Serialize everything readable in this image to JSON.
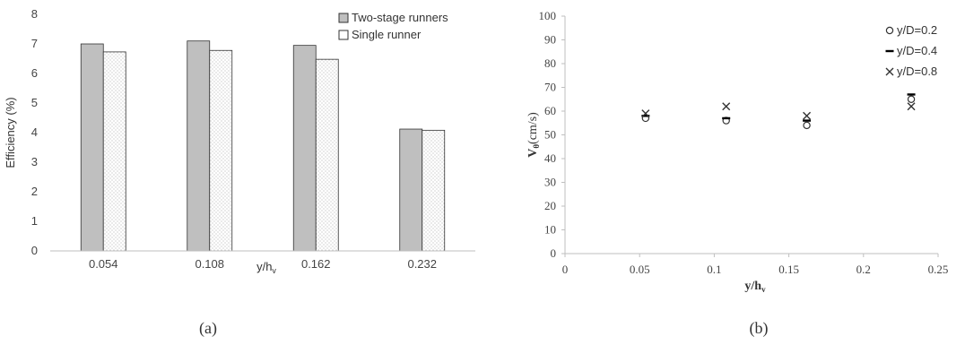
{
  "chart_data": [
    {
      "id": "a",
      "type": "bar",
      "caption": "(a)",
      "xlabel": "y/h",
      "xlabel_sub": "v",
      "ylabel": "Efficiency (%)",
      "ylim": [
        0,
        8
      ],
      "yticks": [
        "0",
        "1",
        "2",
        "3",
        "4",
        "5",
        "6",
        "7",
        "8"
      ],
      "categories": [
        "0.054",
        "0.108",
        "0.162",
        "0.232"
      ],
      "series": [
        {
          "name": "Two-stage runners",
          "values": [
            7.0,
            7.1,
            6.95,
            4.12
          ],
          "color": "#bfbfbf",
          "pattern": "solid"
        },
        {
          "name": "Single runner",
          "values": [
            6.73,
            6.78,
            6.48,
            4.08
          ],
          "color": "#ffffff",
          "pattern": "dots"
        }
      ],
      "legend_position": "top-right",
      "grid": false
    },
    {
      "id": "b",
      "type": "scatter",
      "caption": "(b)",
      "xlabel": "y/h",
      "xlabel_sub": "v",
      "ylabel": "V",
      "ylabel_sub": "θ",
      "ylabel_suffix": "(cm/s)",
      "xlim": [
        0,
        0.25
      ],
      "ylim": [
        0,
        100
      ],
      "xticks": [
        "0",
        "0.05",
        "0.1",
        "0.15",
        "0.2",
        "0.25"
      ],
      "yticks": [
        "0",
        "10",
        "20",
        "30",
        "40",
        "50",
        "60",
        "70",
        "80",
        "90",
        "100"
      ],
      "series": [
        {
          "name": "y/D=0.2",
          "marker": "circle",
          "x": [
            0.054,
            0.108,
            0.162,
            0.232
          ],
          "y": [
            57,
            56,
            54,
            65
          ]
        },
        {
          "name": "y/D=0.4",
          "marker": "dash",
          "x": [
            0.054,
            0.108,
            0.162,
            0.232
          ],
          "y": [
            58,
            57,
            56,
            67
          ]
        },
        {
          "name": "y/D=0.8",
          "marker": "x",
          "x": [
            0.054,
            0.108,
            0.162,
            0.232
          ],
          "y": [
            59,
            62,
            58,
            62
          ]
        }
      ],
      "legend_position": "top-right",
      "grid": false
    }
  ]
}
